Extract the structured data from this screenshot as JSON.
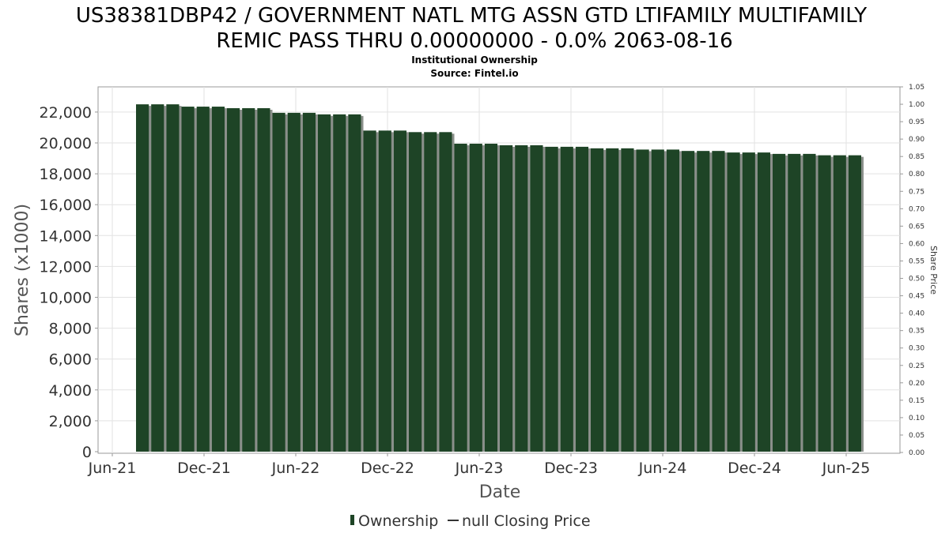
{
  "chart_data": {
    "type": "bar",
    "title_line1": "US38381DBP42 / GOVERNMENT NATL MTG ASSN GTD LTIFAMILY MULTIFAMILY",
    "title_line2": "REMIC PASS THRU 0.00000000 - 0.0% 2063-08-16",
    "subtitle": "Institutional Ownership",
    "source": "Source: Fintel.io",
    "xlabel": "Date",
    "ylabel": "Shares (x1000)",
    "y2label": "Share Price",
    "ylim": [
      0,
      23500
    ],
    "y2lim": [
      0,
      1.05
    ],
    "yticks": [
      "0",
      "2,000",
      "4,000",
      "6,000",
      "8,000",
      "10,000",
      "12,000",
      "14,000",
      "16,000",
      "18,000",
      "20,000",
      "22,000"
    ],
    "y2ticks": [
      "0.00",
      "0.05",
      "0.10",
      "0.15",
      "0.20",
      "0.25",
      "0.30",
      "0.35",
      "0.40",
      "0.45",
      "0.50",
      "0.55",
      "0.60",
      "0.65",
      "0.70",
      "0.75",
      "0.80",
      "0.85",
      "0.90",
      "0.95",
      "1.00",
      "1.05"
    ],
    "xticks": [
      "Jun-21",
      "Dec-21",
      "Jun-22",
      "Dec-22",
      "Jun-23",
      "Dec-23",
      "Jun-24",
      "Dec-24",
      "Jun-25"
    ],
    "grid": true,
    "legend_position": "bottom",
    "series": [
      {
        "name": "Ownership",
        "color": "#1e4426",
        "values": [
          22500,
          22500,
          22500,
          22350,
          22350,
          22350,
          22250,
          22250,
          22250,
          21950,
          21950,
          21950,
          21850,
          21850,
          21850,
          20800,
          20800,
          20800,
          20700,
          20700,
          20700,
          19950,
          19950,
          19950,
          19850,
          19850,
          19850,
          19750,
          19750,
          19750,
          19650,
          19650,
          19650,
          19570,
          19570,
          19570,
          19480,
          19480,
          19480,
          19380,
          19380,
          19380,
          19290,
          19290,
          19290,
          19200,
          19200,
          19200
        ]
      },
      {
        "name": "null Closing Price",
        "color": "#333333",
        "values": []
      }
    ]
  }
}
